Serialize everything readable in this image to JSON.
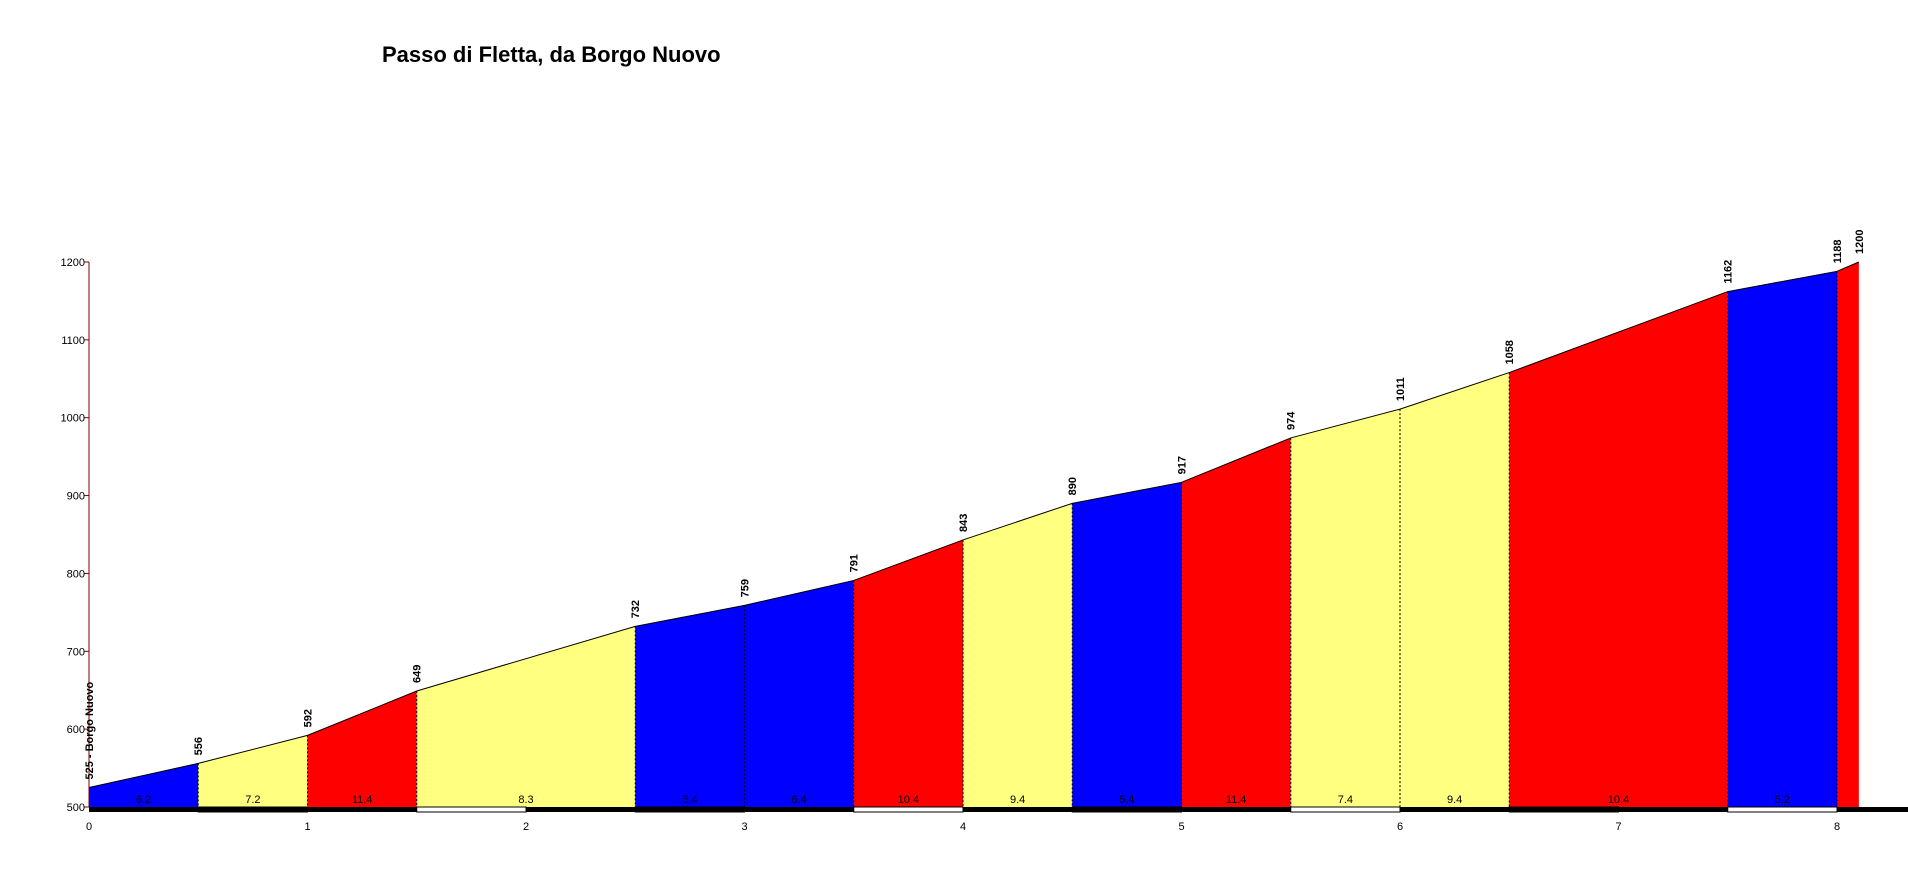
{
  "chart_data": {
    "type": "area",
    "title": "Passo di Fletta, da Borgo Nuovo",
    "xlabel": "",
    "ylabel": "",
    "xlim": [
      0,
      8.1
    ],
    "ylim": [
      500,
      1200
    ],
    "x_ticks": [
      "0",
      "1",
      "2",
      "3",
      "4",
      "5",
      "6",
      "7",
      "8"
    ],
    "y_ticks": [
      "500",
      "600",
      "700",
      "800",
      "900",
      "1000",
      "1100",
      "1200"
    ],
    "start_label": "525 - Borgo Nuovo",
    "points": [
      {
        "x": 0.0,
        "y": 525,
        "label": ""
      },
      {
        "x": 0.5,
        "y": 556,
        "label": "556"
      },
      {
        "x": 1.0,
        "y": 592,
        "label": "592"
      },
      {
        "x": 1.5,
        "y": 649,
        "label": "649"
      },
      {
        "x": 2.5,
        "y": 732,
        "label": "732"
      },
      {
        "x": 3.0,
        "y": 759,
        "label": "759"
      },
      {
        "x": 3.5,
        "y": 791,
        "label": "791"
      },
      {
        "x": 4.0,
        "y": 843,
        "label": "843"
      },
      {
        "x": 4.5,
        "y": 890,
        "label": "890"
      },
      {
        "x": 5.0,
        "y": 917,
        "label": "917"
      },
      {
        "x": 5.5,
        "y": 974,
        "label": "974"
      },
      {
        "x": 6.0,
        "y": 1011,
        "label": "1011"
      },
      {
        "x": 6.5,
        "y": 1058,
        "label": "1058"
      },
      {
        "x": 7.5,
        "y": 1162,
        "label": "1162"
      },
      {
        "x": 8.0,
        "y": 1188,
        "label": "1188"
      },
      {
        "x": 8.1,
        "y": 1200,
        "label": "1200"
      }
    ],
    "segments": [
      {
        "grade": "6.2",
        "color": "#0000ff"
      },
      {
        "grade": "7.2",
        "color": "#ffff80"
      },
      {
        "grade": "11.4",
        "color": "#ff0000"
      },
      {
        "grade": "8.3",
        "color": "#ffff80"
      },
      {
        "grade": "5.4",
        "color": "#0000ff"
      },
      {
        "grade": "6.4",
        "color": "#0000ff"
      },
      {
        "grade": "10.4",
        "color": "#ff0000"
      },
      {
        "grade": "9.4",
        "color": "#ffff80"
      },
      {
        "grade": "5.4",
        "color": "#0000ff"
      },
      {
        "grade": "11.4",
        "color": "#ff0000"
      },
      {
        "grade": "7.4",
        "color": "#ffff80"
      },
      {
        "grade": "9.4",
        "color": "#ffff80"
      },
      {
        "grade": "10.4",
        "color": "#ff0000"
      },
      {
        "grade": "5.2",
        "color": "#0000ff"
      },
      {
        "grade": "",
        "color": "#ff0000"
      }
    ],
    "grid": false,
    "legend": "none"
  }
}
